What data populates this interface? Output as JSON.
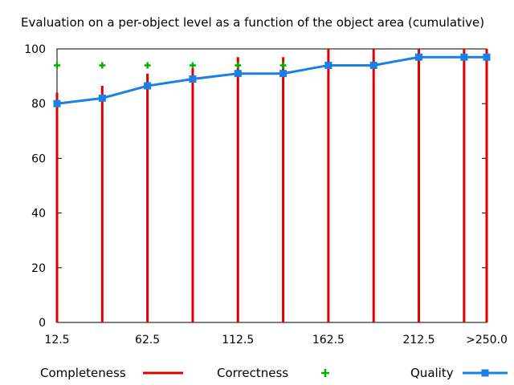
{
  "chart_data": {
    "type": "bar",
    "title": "Evaluation on a per-object level as a function of the object area (cumulative)",
    "xlabel": "",
    "ylabel": "",
    "x": [
      12.5,
      37.5,
      62.5,
      87.5,
      112.5,
      137.5,
      162.5,
      187.5,
      212.5,
      237.5,
      250
    ],
    "x_tick_labels": [
      "12.5",
      "62.5",
      "112.5",
      "162.5",
      "212.5",
      ">250.0"
    ],
    "x_tick_values": [
      12.5,
      62.5,
      112.5,
      162.5,
      212.5,
      250
    ],
    "xlim": [
      12.5,
      250
    ],
    "ylim": [
      0,
      100
    ],
    "y_ticks": [
      0,
      20,
      40,
      60,
      80,
      100
    ],
    "grid": false,
    "legend_position": "bottom",
    "series": [
      {
        "name": "Completeness",
        "kind": "impulse",
        "color": "#e00000",
        "values": [
          84,
          86.5,
          91,
          93,
          97,
          97,
          100,
          100,
          100,
          100,
          100
        ]
      },
      {
        "name": "Correctness",
        "kind": "points",
        "color": "#00b000",
        "values": [
          94,
          94,
          94,
          94,
          94,
          94,
          null,
          null,
          null,
          null,
          null
        ]
      },
      {
        "name": "Quality",
        "kind": "line",
        "color": "#1a7fe6",
        "values": [
          80,
          82,
          86.5,
          89,
          91,
          91,
          94,
          94,
          97,
          97,
          97
        ]
      }
    ]
  }
}
